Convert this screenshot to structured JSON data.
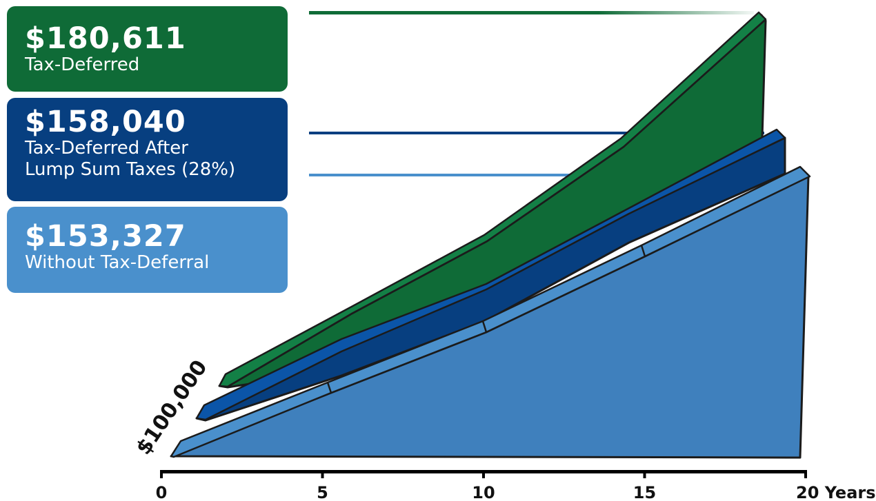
{
  "colors": {
    "tax_deferred": "#0f6b37",
    "tax_deferred_after_tax": "#073f80",
    "without_tax_deferral": "#4a90cc",
    "axis": "#000000"
  },
  "chart_data": {
    "type": "area",
    "x_ticks": [
      "0",
      "5",
      "10",
      "15",
      "20 Years"
    ],
    "x_tick_values": [
      0,
      5,
      10,
      15,
      20
    ],
    "xlim": [
      0,
      20
    ],
    "y_label": "$100,000",
    "series": [
      {
        "name": "Tax-Deferred",
        "value_label": "$180,611",
        "final_value": 180611,
        "start_value": 100000,
        "color_key": "tax_deferred"
      },
      {
        "name": "Tax-Deferred After Lump Sum Taxes (28%)",
        "value_label": "$158,040",
        "final_value": 158040,
        "start_value": 100000,
        "color_key": "tax_deferred_after_tax"
      },
      {
        "name": "Without Tax-Deferral",
        "value_label": "$153,327",
        "final_value": 153327,
        "start_value": 100000,
        "color_key": "without_tax_deferral"
      }
    ]
  },
  "legend": [
    {
      "value": "$180,611",
      "label_lines": [
        "Tax-Deferred"
      ]
    },
    {
      "value": "$158,040",
      "label_lines": [
        "Tax-Deferred After",
        "Lump Sum Taxes (28%)"
      ]
    },
    {
      "value": "$153,327",
      "label_lines": [
        "Without Tax-Deferral"
      ]
    }
  ]
}
